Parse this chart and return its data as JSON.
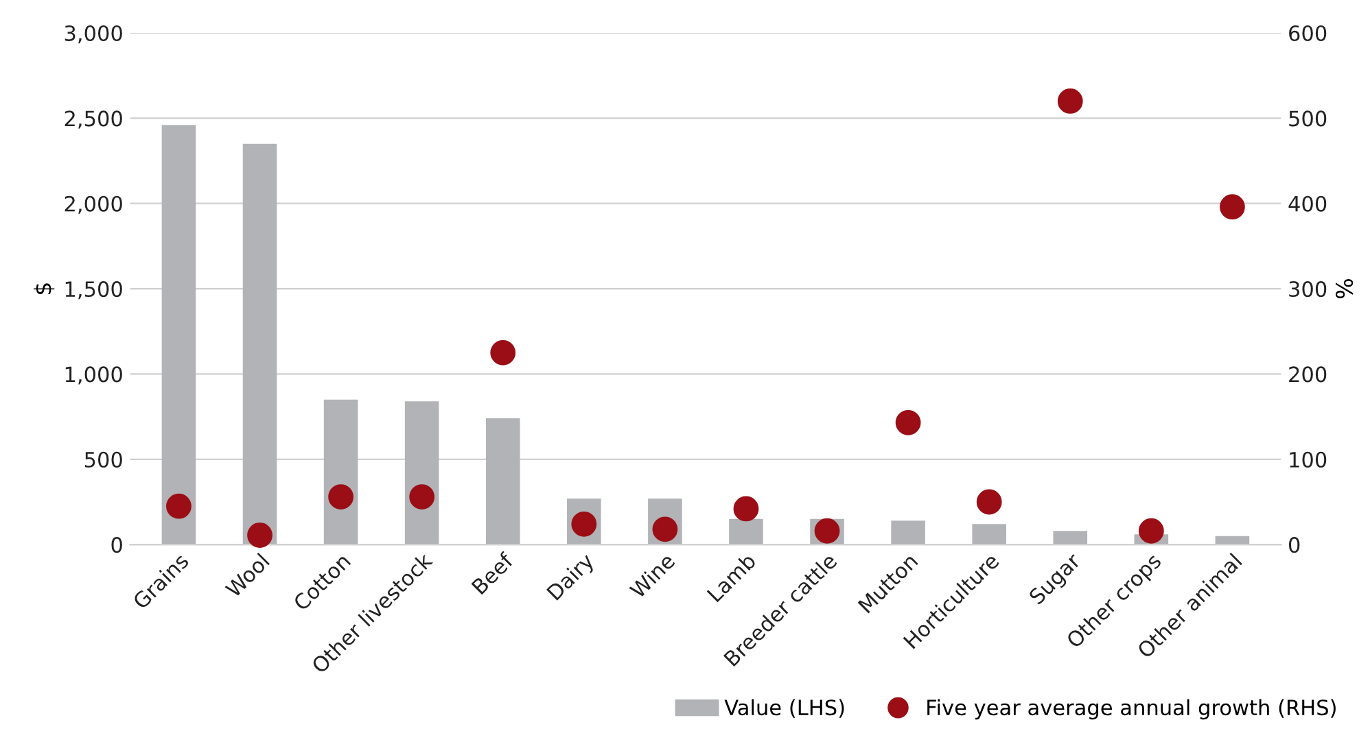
{
  "chart_data": {
    "type": "bar",
    "categories": [
      "Grains",
      "Wool",
      "Cotton",
      "Other livestock",
      "Beef",
      "Dairy",
      "Wine",
      "Lamb",
      "Breeder cattle",
      "Mutton",
      "Horticulture",
      "Sugar",
      "Other crops",
      "Other animal"
    ],
    "series": [
      {
        "name": "Value (LHS)",
        "color": "#b1b3b6",
        "values": [
          2460,
          2350,
          850,
          840,
          740,
          270,
          270,
          150,
          150,
          140,
          120,
          80,
          60,
          50
        ]
      },
      {
        "name": "Five year average annual growth (RHS)",
        "type": "scatter",
        "axis": "y2",
        "color": "#9b0e16",
        "values": [
          45,
          11,
          56,
          56,
          225,
          24,
          18,
          42,
          16,
          143,
          50,
          520,
          16,
          396
        ]
      }
    ],
    "ylabel": "$",
    "y2label": "%",
    "ylim": [
      0,
      3000
    ],
    "yticks": [
      {
        "value": 0,
        "label": "0"
      },
      {
        "value": 500,
        "label": "500"
      },
      {
        "value": 1000,
        "label": "1,000"
      },
      {
        "value": 1500,
        "label": "1,500"
      },
      {
        "value": 2000,
        "label": "2,000"
      },
      {
        "value": 2500,
        "label": "2,500"
      },
      {
        "value": 3000,
        "label": "3,000"
      }
    ],
    "y2lim": [
      0,
      600
    ],
    "y2ticks": [
      0,
      100,
      200,
      300,
      400,
      500,
      600
    ],
    "grid": "y",
    "legend": "bottom right",
    "marker": "circle"
  }
}
